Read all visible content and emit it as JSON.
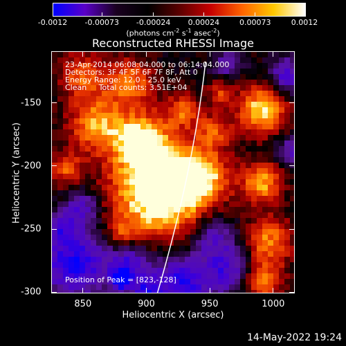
{
  "colorbar": {
    "ticks": [
      "-0.0012",
      "-0.00073",
      "-0.00024",
      "0.00024",
      "0.00073",
      "0.0012"
    ],
    "tick_values": [
      -0.0012,
      -0.00073,
      -0.00024,
      0.00024,
      0.00073,
      0.0012
    ],
    "range": [
      -0.0012,
      0.0012
    ],
    "label_prefix": "(photons cm",
    "label_exp1": "-2",
    "label_mid": " s",
    "label_exp2": "-1",
    "label_mid2": " asec",
    "label_exp3": "-2",
    "label_suffix": ")",
    "colormap": [
      "#0000ff",
      "#5a00c8",
      "#1a0020",
      "#000000",
      "#5a0000",
      "#c80000",
      "#ff6400",
      "#ffc800",
      "#ffffff"
    ]
  },
  "plot": {
    "title": "Reconstructed RHESSI Image",
    "xlabel": "Heliocentric X (arcsec)",
    "ylabel": "Heliocentric Y (arcsec)",
    "xlim": [
      825,
      1017
    ],
    "ylim": [
      -301,
      -109
    ],
    "xticks": [
      "850",
      "900",
      "950",
      "1000"
    ],
    "xtick_values": [
      850,
      900,
      950,
      1000
    ],
    "yticks": [
      "-150",
      "-200",
      "-250",
      "-300"
    ],
    "ytick_values": [
      -150,
      -200,
      -250,
      -300
    ],
    "limb_line_color": "#ffffff"
  },
  "info": {
    "line1": "23-Apr-2014 06:08:04.000 to 06:14:04.000",
    "line2": "Detectors: 3F 4F 5F 6F 7F 8F, Att 0",
    "line3": "Energy Range: 12.0 - 25.0 keV",
    "line4": "Clean     Total counts: 3.51E+04",
    "peak": "Position of Peak = [823,-128]"
  },
  "footer": {
    "date": "14-May-2022 19:24"
  }
}
